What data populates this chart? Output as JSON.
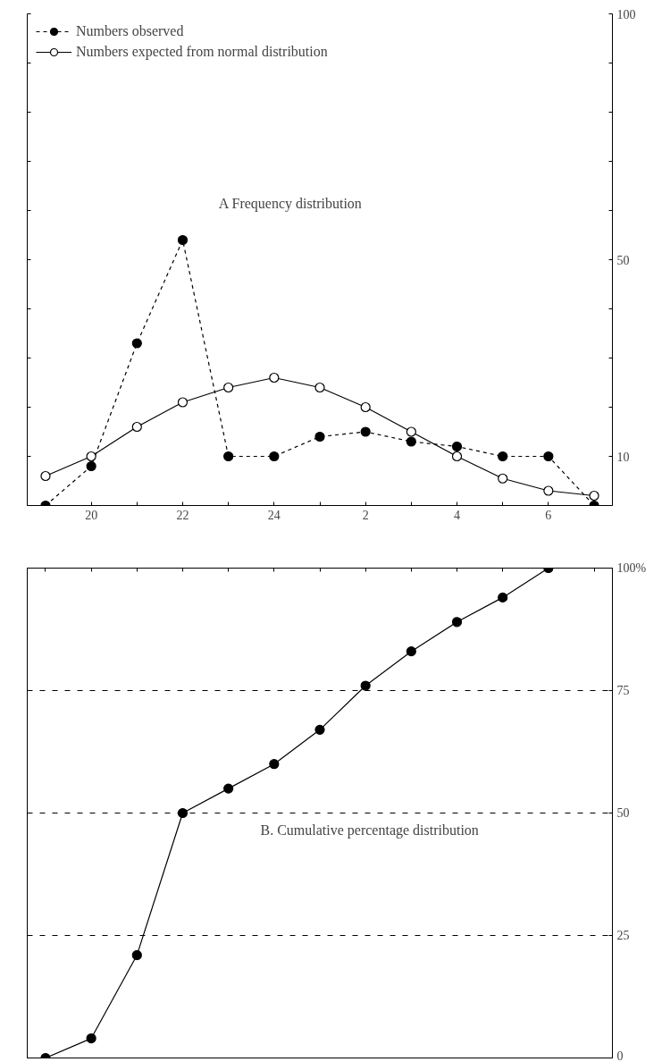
{
  "chart_data": [
    {
      "type": "line",
      "title": "A  Frequency distribution",
      "categories": [
        null,
        "20",
        null,
        "22",
        null,
        "24",
        null,
        "2",
        null,
        "4",
        null,
        "6",
        null
      ],
      "series": [
        {
          "name": "Numbers observed",
          "color": "#000000",
          "marker": "circle",
          "line_style": "dashed",
          "values": [
            0,
            8,
            33,
            54,
            10,
            10,
            14,
            15,
            13,
            12,
            10,
            10,
            0
          ]
        },
        {
          "name": "Numbers expected from normal distribution",
          "color": "#000000",
          "marker": "circle",
          "line_style": "solid",
          "values": [
            6,
            10,
            16,
            21,
            24,
            26,
            24,
            20,
            15,
            10,
            5.5,
            3,
            2
          ]
        }
      ],
      "ylim": [
        0,
        100
      ],
      "yticks": [
        {
          "value": 0,
          "label": null
        },
        10,
        {
          "value": 20,
          "label": null
        },
        {
          "value": 30,
          "label": null
        },
        {
          "value": 40,
          "label": null
        },
        50,
        {
          "value": 60,
          "label": null
        },
        {
          "value": 70,
          "label": null
        },
        {
          "value": 80,
          "label": null
        },
        {
          "value": 90,
          "label": null
        },
        100
      ],
      "grid": false,
      "legend": "top left"
    },
    {
      "type": "line",
      "title": "B. Cumulative percentage distribution",
      "categories": [
        null,
        null,
        null,
        null,
        null,
        null,
        null,
        null,
        null,
        null,
        null,
        null,
        null
      ],
      "series": [
        {
          "color": "#000000",
          "marker": "circle",
          "line_style": "solid",
          "values": [
            0,
            4,
            21,
            50,
            55,
            60,
            67,
            76,
            83,
            89,
            94,
            100,
            null
          ]
        }
      ],
      "ylim": [
        0,
        100
      ],
      "yticks": [
        0,
        25,
        50,
        75,
        {
          "value": 100,
          "label": "100%"
        }
      ],
      "tick_labels": "y",
      "grid": "y",
      "legend": false
    }
  ]
}
